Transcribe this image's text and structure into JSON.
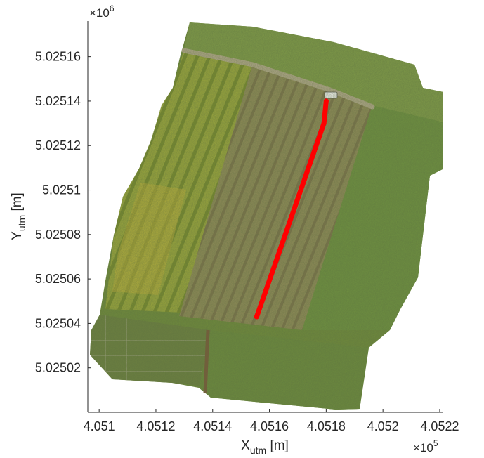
{
  "chart_data": {
    "type": "scatter",
    "background": "orthomosaic aerial image of a vineyard",
    "xlabel": {
      "main": "X",
      "sub": "utm",
      "unit": " [m]"
    },
    "ylabel": {
      "main": "Y",
      "sub": "utm",
      "unit": " [m]"
    },
    "xlim": [
      405096,
      405221
    ],
    "ylim": [
      5025000,
      5025176
    ],
    "x_ticks": [
      405100,
      405120,
      405140,
      405160,
      405180,
      405200,
      405220
    ],
    "x_tick_labels": [
      "4.051",
      "4.0512",
      "4.0514",
      "4.0516",
      "4.0518",
      "4.052",
      "4.0522"
    ],
    "y_ticks": [
      5025020,
      5025040,
      5025060,
      5025080,
      5025100,
      5025120,
      5025140,
      5025160
    ],
    "y_tick_labels": [
      "5.02502",
      "5.02504",
      "5.02506",
      "5.02508",
      "5.0251",
      "5.02512",
      "5.02514",
      "5.02516"
    ],
    "x_multiplier": {
      "base": "×10",
      "exp": "5"
    },
    "y_multiplier": {
      "base": "×10",
      "exp": "6"
    },
    "grid": false,
    "series": [
      {
        "color": "#ff0000",
        "x": [
          405155.5,
          405158.8,
          405162.2,
          405165.6,
          405169.0,
          405172.4,
          405175.8,
          405179.2,
          405180.0
        ],
        "y": [
          5025043.0,
          5025055.0,
          5025067.5,
          5025080.0,
          5025092.5,
          5025105.0,
          5025117.5,
          5025130.0,
          5025140.0
        ]
      }
    ]
  },
  "colors": {
    "axis": "#262626",
    "path": "#ff0000"
  }
}
